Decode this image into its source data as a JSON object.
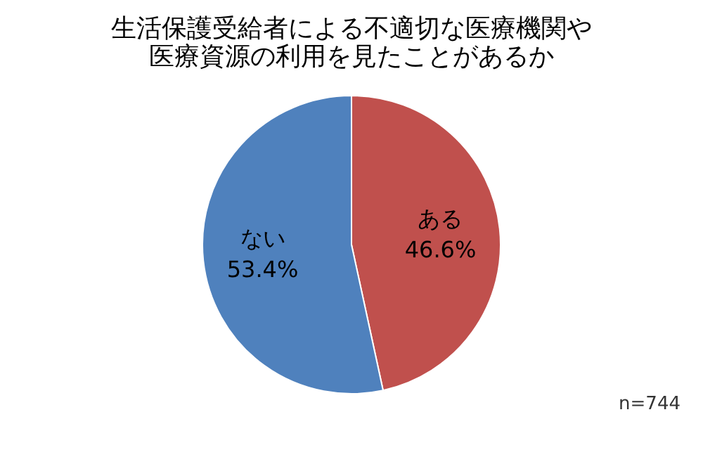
{
  "chart_data": {
    "type": "pie",
    "title": [
      "生活保護受給者による不適切な医療機関や",
      "医療資源の利用を見たことがあるか"
    ],
    "categories": [
      "ある",
      "ない"
    ],
    "values": [
      46.6,
      53.4
    ],
    "colors": [
      "#c0504d",
      "#4f81bd"
    ],
    "value_labels": [
      "46.6%",
      "53.4%"
    ],
    "annotations": [
      "n=744"
    ],
    "legend": false
  }
}
